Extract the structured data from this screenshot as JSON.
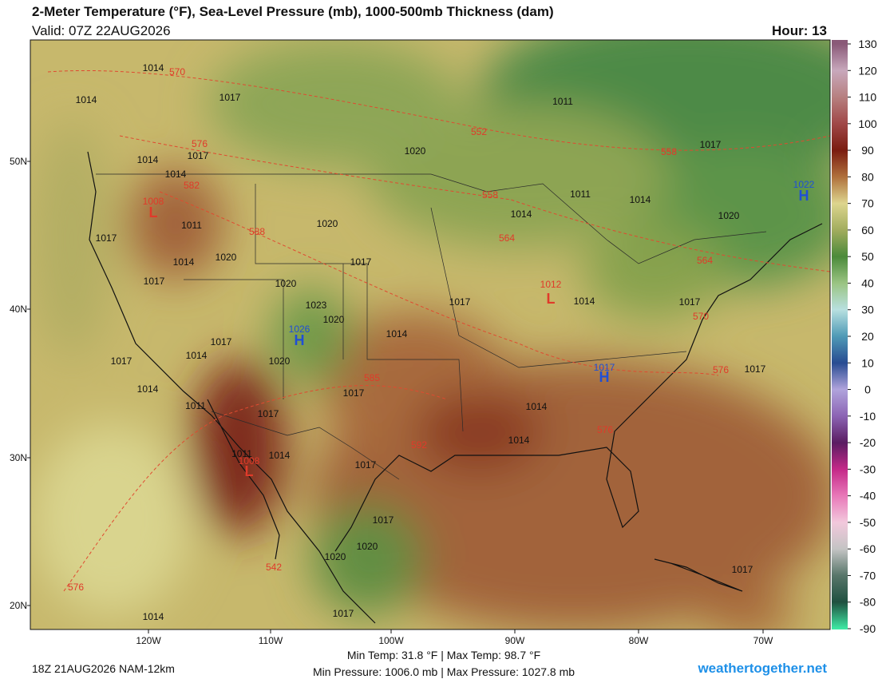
{
  "header": {
    "title": "2-Meter Temperature (°F), Sea-Level Pressure (mb), 1000-500mb Thickness (dam)",
    "valid": "Valid: 07Z 22AUG2026",
    "hour": "Hour: 13"
  },
  "colorbar": {
    "ticks": [
      130,
      120,
      110,
      100,
      90,
      80,
      70,
      60,
      50,
      40,
      30,
      20,
      10,
      0,
      -10,
      -20,
      -30,
      -40,
      -50,
      -60,
      -70,
      -80,
      -90
    ],
    "colors": [
      "#8a5a78",
      "#c8a8bc",
      "#b78080",
      "#a04848",
      "#7a1c10",
      "#b0703c",
      "#ddd58e",
      "#a2ad5e",
      "#4b8a3a",
      "#9ac482",
      "#b8e0e0",
      "#4f9ab6",
      "#284c92",
      "#b0a4dc",
      "#8c64b4",
      "#5a1c62",
      "#c42888",
      "#e878b8",
      "#f2c8dc",
      "#c4c4c4",
      "#58766a",
      "#1f5040",
      "#3ee8a4"
    ]
  },
  "axes": {
    "lat_labels": [
      "50N",
      "40N",
      "30N",
      "20N"
    ],
    "lon_labels": [
      "120W",
      "110W",
      "100W",
      "90W",
      "80W",
      "70W"
    ]
  },
  "map": {
    "labels": [
      {
        "text": "1014",
        "color": "#111111"
      },
      {
        "text": "570",
        "color": "#e03a2a"
      },
      {
        "text": "1014",
        "color": "#111111"
      },
      {
        "text": "1017",
        "color": "#111111"
      },
      {
        "text": "1014",
        "color": "#111111"
      },
      {
        "text": "576",
        "color": "#e03a2a"
      },
      {
        "text": "1017",
        "color": "#111111"
      },
      {
        "text": "1014",
        "color": "#111111"
      },
      {
        "text": "582",
        "color": "#e03a2a"
      },
      {
        "text": "1008",
        "color": "#e03a2a"
      },
      {
        "text": "L",
        "color": "#e03a2a"
      },
      {
        "text": "1011",
        "color": "#111111"
      },
      {
        "text": "588",
        "color": "#e03a2a"
      },
      {
        "text": "1020",
        "color": "#111111"
      },
      {
        "text": "1017",
        "color": "#111111"
      },
      {
        "text": "1014",
        "color": "#111111"
      },
      {
        "text": "1020",
        "color": "#111111"
      },
      {
        "text": "1017",
        "color": "#111111"
      },
      {
        "text": "1017",
        "color": "#111111"
      },
      {
        "text": "1020",
        "color": "#111111"
      },
      {
        "text": "1023",
        "color": "#111111"
      },
      {
        "text": "1020",
        "color": "#111111"
      },
      {
        "text": "1026",
        "color": "#1f4fd6"
      },
      {
        "text": "H",
        "color": "#1f4fd6"
      },
      {
        "text": "1017",
        "color": "#111111"
      },
      {
        "text": "1014",
        "color": "#111111"
      },
      {
        "text": "1017",
        "color": "#111111"
      },
      {
        "text": "1014",
        "color": "#111111"
      },
      {
        "text": "1017",
        "color": "#111111"
      },
      {
        "text": "1020",
        "color": "#111111"
      },
      {
        "text": "585",
        "color": "#e03a2a"
      },
      {
        "text": "1017",
        "color": "#111111"
      },
      {
        "text": "1014",
        "color": "#111111"
      },
      {
        "text": "1011",
        "color": "#111111"
      },
      {
        "text": "1017",
        "color": "#111111"
      },
      {
        "text": "1011",
        "color": "#111111"
      },
      {
        "text": "1008",
        "color": "#e03a2a"
      },
      {
        "text": "L",
        "color": "#e03a2a"
      },
      {
        "text": "1014",
        "color": "#111111"
      },
      {
        "text": "1017",
        "color": "#111111"
      },
      {
        "text": "592",
        "color": "#e03a2a"
      },
      {
        "text": "1014",
        "color": "#111111"
      },
      {
        "text": "1014",
        "color": "#111111"
      },
      {
        "text": "576",
        "color": "#e03a2a"
      },
      {
        "text": "1017",
        "color": "#1f4fd6"
      },
      {
        "text": "H",
        "color": "#1f4fd6"
      },
      {
        "text": "576",
        "color": "#e03a2a"
      },
      {
        "text": "1017",
        "color": "#111111"
      },
      {
        "text": "1012",
        "color": "#e03a2a"
      },
      {
        "text": "L",
        "color": "#e03a2a"
      },
      {
        "text": "1014",
        "color": "#111111"
      },
      {
        "text": "1017",
        "color": "#111111"
      },
      {
        "text": "570",
        "color": "#e03a2a"
      },
      {
        "text": "1011",
        "color": "#111111"
      },
      {
        "text": "552",
        "color": "#e03a2a"
      },
      {
        "text": "1020",
        "color": "#111111"
      },
      {
        "text": "558",
        "color": "#e03a2a"
      },
      {
        "text": "1017",
        "color": "#111111"
      },
      {
        "text": "1022",
        "color": "#1f4fd6"
      },
      {
        "text": "H",
        "color": "#1f4fd6"
      },
      {
        "text": "1011",
        "color": "#111111"
      },
      {
        "text": "1014",
        "color": "#111111"
      },
      {
        "text": "558",
        "color": "#e03a2a"
      },
      {
        "text": "1014",
        "color": "#111111"
      },
      {
        "text": "564",
        "color": "#e03a2a"
      },
      {
        "text": "564",
        "color": "#e03a2a"
      },
      {
        "text": "1020",
        "color": "#111111"
      },
      {
        "text": "1017",
        "color": "#111111"
      },
      {
        "text": "1020",
        "color": "#111111"
      },
      {
        "text": "1020",
        "color": "#111111"
      },
      {
        "text": "542",
        "color": "#e03a2a"
      },
      {
        "text": "1017",
        "color": "#111111"
      },
      {
        "text": "1014",
        "color": "#111111"
      },
      {
        "text": "576",
        "color": "#e03a2a"
      },
      {
        "text": "1017",
        "color": "#111111"
      }
    ]
  },
  "footer": {
    "run": "18Z 21AUG2026 NAM-12km",
    "temps": "Min Temp:  31.8 °F | Max Temp:  98.7 °F",
    "pressures": "Min Pressure: 1006.0 mb | Max Pressure: 1027.8 mb",
    "site": "weathertogether.net"
  }
}
